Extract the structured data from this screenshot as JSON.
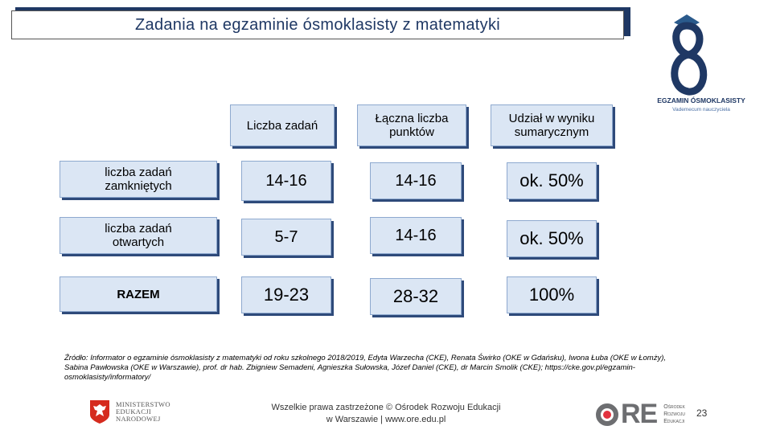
{
  "title": "Zadania na egzaminie ósmoklasisty z matematyki",
  "logo": {
    "text1": "EGZAMIN ÓSMOKLASISTY",
    "text2": "Vademecum nauczyciela"
  },
  "table": {
    "headers": [
      "Liczba zadań",
      "Łączna liczba punktów",
      "Udział w wyniku sumarycznym"
    ],
    "rows": [
      {
        "label": "liczba zadań zamkniętych",
        "values": [
          "14-16",
          "14-16",
          "ok. 50%"
        ]
      },
      {
        "label": "liczba zadań otwartych",
        "values": [
          "5-7",
          "14-16",
          "ok. 50%"
        ]
      },
      {
        "label": "RAZEM",
        "values": [
          "19-23",
          "28-32",
          "100%"
        ]
      }
    ]
  },
  "source": "Źródło: Informator o egzaminie ósmoklasisty z matematyki od roku szkolnego 2018/2019, Edyta Warzecha (CKE), Renata Świrko (OKE w Gdańsku), Iwona Łuba (OKE w Łomży), Sabina Pawłowska (OKE w Warszawie), prof. dr hab. Zbigniew Semadeni, Agnieszka Sułowska, Józef Daniel (CKE), dr Marcin Smolik (CKE); https://cke.gov.pl/egzamin-osmoklasisty/informatory/",
  "footer": {
    "line1": "Wszelkie prawa zastrzeżone © Ośrodek Rozwoju Edukacji",
    "line2": "w Warszawie | www.ore.edu.pl",
    "page_number": "23",
    "ministry": [
      "MINISTERSTWO",
      "EDUKACJI",
      "NARODOWEJ"
    ],
    "ore_letters": "RE",
    "ore_sub": [
      "Ośrodek",
      "Rozwoju",
      "Edukacji"
    ]
  },
  "colors": {
    "title_text": "#1f3864",
    "cell_fill": "#dbe6f4",
    "cell_shadow": "#2e4a7a",
    "ore_red": "#e2323f",
    "ministry_red": "#d52b1e"
  }
}
